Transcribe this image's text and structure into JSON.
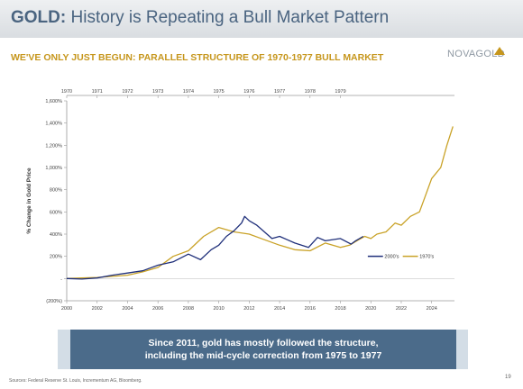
{
  "header": {
    "title_bold": "GOLD:",
    "title_rest": " History is Repeating a Bull Market Pattern",
    "subtitle": "WE'VE ONLY JUST BEGUN: PARALLEL STRUCTURE OF 1970-1977 BULL MARKET",
    "logo_text": "NOVAGOLD"
  },
  "callout": {
    "line1": "Since 2011, gold has mostly followed the structure,",
    "line2": "including the mid-cycle correction from 1975 to 1977"
  },
  "footer": {
    "sources": "Sources: Federal Reserve St. Louis, Incrementum AG, Bloomberg.",
    "page": "19"
  },
  "colors": {
    "navy": "#1f2f7a",
    "gold": "#c9a227",
    "title": "#4a6480",
    "subtitle": "#c6961c",
    "callout": "#4b6b8a"
  },
  "chart_data": {
    "type": "line",
    "ylabel": "% Change in Gold Price",
    "ylim": [
      -200,
      1600
    ],
    "y_ticks": [
      -200,
      0,
      200,
      400,
      600,
      800,
      1000,
      1200,
      1400,
      1600
    ],
    "y_tick_labels": [
      "(200%)",
      "-",
      "200%",
      "400%",
      "600%",
      "800%",
      "1,000%",
      "1,200%",
      "1,400%",
      "1,600%"
    ],
    "xlim": [
      2000,
      2025.5
    ],
    "x_ticks": [
      2000,
      2002,
      2004,
      2006,
      2008,
      2010,
      2012,
      2014,
      2016,
      2018,
      2020,
      2022,
      2024
    ],
    "top_axis": {
      "xlim": [
        1970,
        1982.75
      ],
      "ticks": [
        1970,
        1971,
        1972,
        1973,
        1974,
        1975,
        1976,
        1977,
        1978,
        1979
      ]
    },
    "grid": false,
    "legend_position": "right",
    "series": [
      {
        "name": "2000's",
        "axis": "bottom",
        "x": [
          2000,
          2001,
          2002,
          2003,
          2004,
          2005,
          2006,
          2007,
          2008,
          2008.8,
          2009.5,
          2010,
          2010.5,
          2011,
          2011.5,
          2011.7,
          2012,
          2012.5,
          2013,
          2013.5,
          2014,
          2014.5,
          2015,
          2015.9,
          2016.5,
          2017,
          2018,
          2018.7,
          2019,
          2019.5
        ],
        "y": [
          0,
          -5,
          5,
          30,
          50,
          70,
          120,
          150,
          220,
          170,
          260,
          300,
          380,
          430,
          500,
          560,
          520,
          480,
          420,
          360,
          380,
          350,
          320,
          280,
          370,
          340,
          360,
          310,
          340,
          380
        ]
      },
      {
        "name": "1970's",
        "axis": "top",
        "x": [
          1970,
          1970.5,
          1971,
          1971.5,
          1972,
          1972.5,
          1973,
          1973.5,
          1974,
          1974.5,
          1975,
          1975.5,
          1976,
          1976.5,
          1977,
          1977.5,
          1978,
          1978.5,
          1979,
          1979.3,
          1979.6,
          1979.8,
          1980,
          1980.2,
          1980.5,
          1980.8,
          1981,
          1981.3,
          1981.6,
          1981.8,
          1982,
          1982.3,
          1982.5,
          1982.7
        ],
        "y": [
          0,
          5,
          10,
          20,
          30,
          60,
          100,
          200,
          250,
          380,
          460,
          420,
          400,
          350,
          300,
          260,
          250,
          320,
          280,
          300,
          350,
          380,
          360,
          400,
          420,
          500,
          480,
          560,
          600,
          750,
          900,
          1000,
          1200,
          1370
        ]
      }
    ]
  }
}
